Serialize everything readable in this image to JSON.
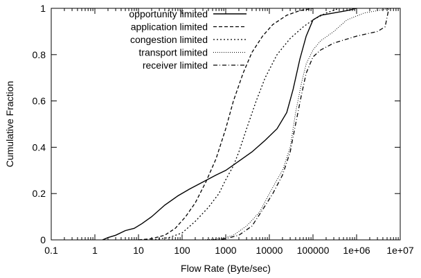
{
  "chart_data": {
    "type": "line",
    "xscale": "log",
    "xlabel": "Flow Rate (Byte/sec)",
    "ylabel": "Cumulative Fraction",
    "xlim": [
      0.1,
      10000000
    ],
    "ylim": [
      0,
      1
    ],
    "grid": false,
    "legend_position": "top-left",
    "x_ticks": [
      {
        "value": 0.1,
        "label": "0.1"
      },
      {
        "value": 1,
        "label": "1"
      },
      {
        "value": 10,
        "label": "10"
      },
      {
        "value": 100,
        "label": "100"
      },
      {
        "value": 1000,
        "label": "1000"
      },
      {
        "value": 10000,
        "label": "10000"
      },
      {
        "value": 100000,
        "label": "100000"
      },
      {
        "value": 1000000,
        "label": "1e+06"
      },
      {
        "value": 10000000,
        "label": "1e+07"
      }
    ],
    "y_ticks": [
      {
        "value": 0,
        "label": "0"
      },
      {
        "value": 0.2,
        "label": "0.2"
      },
      {
        "value": 0.4,
        "label": "0.4"
      },
      {
        "value": 0.6,
        "label": "0.6"
      },
      {
        "value": 0.8,
        "label": "0.8"
      },
      {
        "value": 1,
        "label": "1"
      }
    ],
    "series": [
      {
        "name": "opportunity limited",
        "style": "solid",
        "points": [
          [
            1.5,
            0
          ],
          [
            2,
            0.01
          ],
          [
            3,
            0.02
          ],
          [
            5,
            0.04
          ],
          [
            8,
            0.05
          ],
          [
            12,
            0.07
          ],
          [
            20,
            0.1
          ],
          [
            40,
            0.15
          ],
          [
            80,
            0.19
          ],
          [
            150,
            0.22
          ],
          [
            300,
            0.25
          ],
          [
            600,
            0.28
          ],
          [
            1000,
            0.3
          ],
          [
            2000,
            0.34
          ],
          [
            4000,
            0.38
          ],
          [
            8000,
            0.43
          ],
          [
            15000,
            0.48
          ],
          [
            25000,
            0.55
          ],
          [
            35000,
            0.65
          ],
          [
            50000,
            0.78
          ],
          [
            70000,
            0.88
          ],
          [
            100000,
            0.95
          ],
          [
            150000,
            0.97
          ],
          [
            300000,
            0.98
          ],
          [
            600000,
            0.99
          ],
          [
            1000000,
            1
          ]
        ]
      },
      {
        "name": "application limited",
        "style": "dash",
        "points": [
          [
            10,
            0
          ],
          [
            20,
            0.005
          ],
          [
            40,
            0.02
          ],
          [
            70,
            0.05
          ],
          [
            120,
            0.1
          ],
          [
            200,
            0.16
          ],
          [
            350,
            0.25
          ],
          [
            600,
            0.35
          ],
          [
            1000,
            0.48
          ],
          [
            1500,
            0.6
          ],
          [
            2500,
            0.72
          ],
          [
            4000,
            0.81
          ],
          [
            7000,
            0.88
          ],
          [
            12000,
            0.93
          ],
          [
            25000,
            0.97
          ],
          [
            50000,
            0.99
          ],
          [
            100000,
            1
          ]
        ]
      },
      {
        "name": "congestion limited",
        "style": "dot",
        "points": [
          [
            20,
            0
          ],
          [
            50,
            0.01
          ],
          [
            100,
            0.03
          ],
          [
            200,
            0.08
          ],
          [
            400,
            0.14
          ],
          [
            700,
            0.2
          ],
          [
            1000,
            0.26
          ],
          [
            1500,
            0.32
          ],
          [
            2000,
            0.38
          ],
          [
            3000,
            0.48
          ],
          [
            5000,
            0.6
          ],
          [
            8000,
            0.7
          ],
          [
            15000,
            0.8
          ],
          [
            30000,
            0.87
          ],
          [
            60000,
            0.92
          ],
          [
            100000,
            0.95
          ],
          [
            200000,
            0.98
          ],
          [
            400000,
            1
          ]
        ]
      },
      {
        "name": "transport limited",
        "style": "fine-dot",
        "points": [
          [
            300,
            0
          ],
          [
            800,
            0.005
          ],
          [
            1500,
            0.02
          ],
          [
            3000,
            0.06
          ],
          [
            6000,
            0.12
          ],
          [
            10000,
            0.2
          ],
          [
            15000,
            0.26
          ],
          [
            20000,
            0.3
          ],
          [
            30000,
            0.4
          ],
          [
            40000,
            0.55
          ],
          [
            55000,
            0.68
          ],
          [
            70000,
            0.76
          ],
          [
            100000,
            0.82
          ],
          [
            150000,
            0.86
          ],
          [
            300000,
            0.9
          ],
          [
            600000,
            0.95
          ],
          [
            1500000,
            0.98
          ],
          [
            3000000,
            0.99
          ],
          [
            6000000,
            1
          ]
        ]
      },
      {
        "name": "receiver limited",
        "style": "dash-dot",
        "points": [
          [
            500,
            0
          ],
          [
            1000,
            0.005
          ],
          [
            2000,
            0.02
          ],
          [
            4000,
            0.06
          ],
          [
            7000,
            0.13
          ],
          [
            12000,
            0.2
          ],
          [
            20000,
            0.28
          ],
          [
            30000,
            0.38
          ],
          [
            40000,
            0.5
          ],
          [
            55000,
            0.63
          ],
          [
            70000,
            0.72
          ],
          [
            100000,
            0.79
          ],
          [
            150000,
            0.82
          ],
          [
            300000,
            0.85
          ],
          [
            1000000,
            0.88
          ],
          [
            3000000,
            0.9
          ],
          [
            4500000,
            0.92
          ],
          [
            5500000,
            1
          ]
        ]
      }
    ]
  }
}
